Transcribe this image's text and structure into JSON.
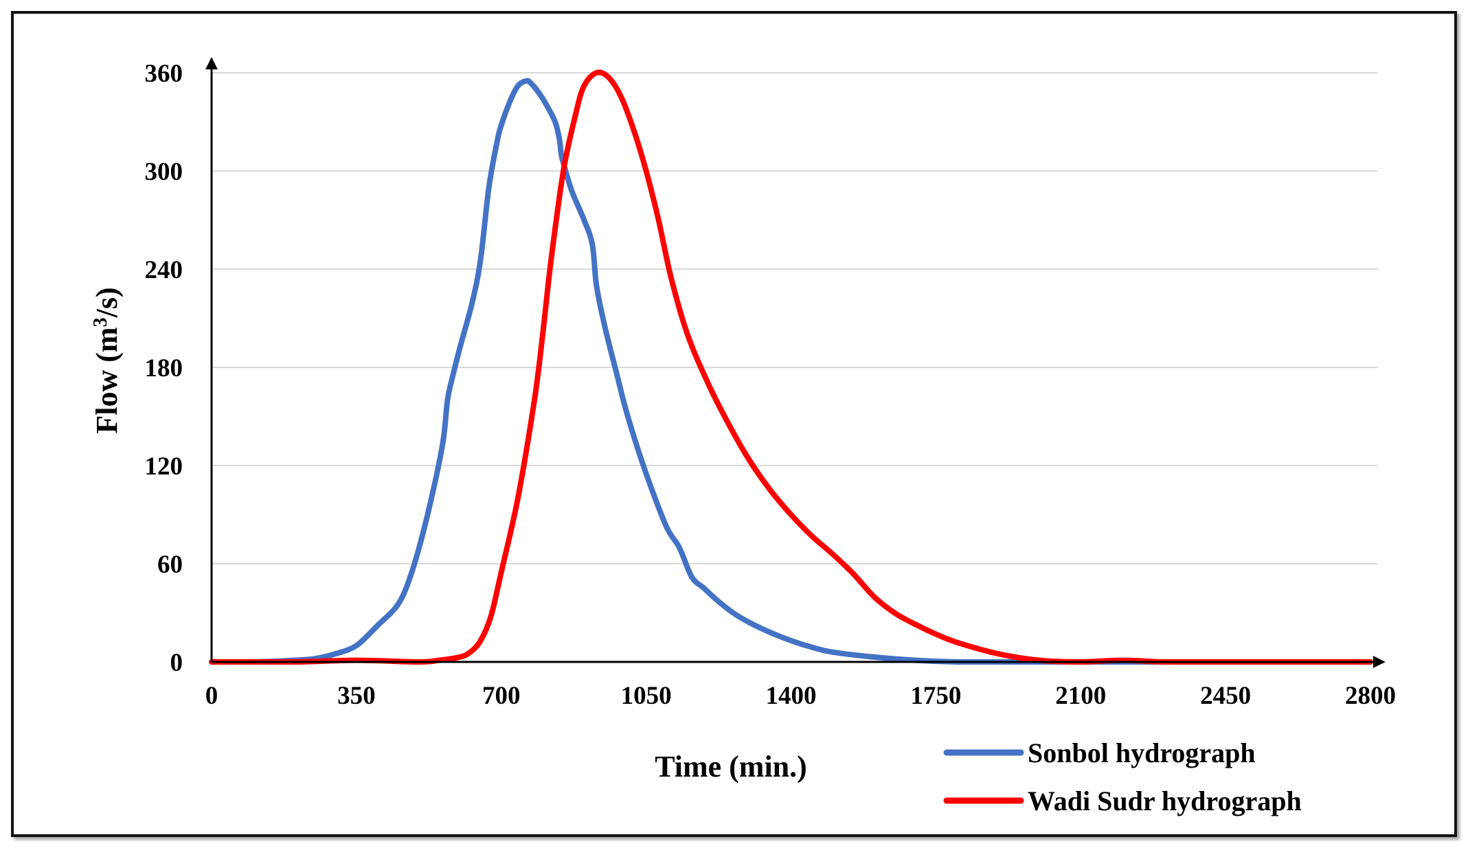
{
  "chart_data": {
    "type": "line",
    "title": "",
    "xlabel": "Time (min.)",
    "ylabel_prefix": "Flow (m",
    "ylabel_sup": "3",
    "ylabel_suffix": "/s)",
    "xlim": [
      0,
      2800
    ],
    "ylim": [
      0,
      360
    ],
    "x_ticks": [
      0,
      350,
      700,
      1050,
      1400,
      1750,
      2100,
      2450,
      2800
    ],
    "y_ticks": [
      0,
      60,
      120,
      180,
      240,
      300,
      360
    ],
    "grid": "horizontal",
    "legend_position": "bottom-right",
    "series": [
      {
        "name": "Sonbol hydrograph",
        "color": "#4472C4",
        "x": [
          0,
          100,
          200,
          250,
          300,
          350,
          400,
          450,
          480,
          510,
          540,
          560,
          570,
          580,
          600,
          630,
          650,
          670,
          690,
          700,
          720,
          740,
          760,
          770,
          790,
          810,
          830,
          840,
          845,
          850,
          870,
          900,
          920,
          930,
          950,
          980,
          1000,
          1030,
          1060,
          1100,
          1130,
          1160,
          1190,
          1220,
          1260,
          1300,
          1350,
          1400,
          1450,
          1500,
          1600,
          1700,
          1800,
          1900,
          2000,
          2100,
          2400,
          2800
        ],
        "y": [
          0,
          0,
          1,
          2,
          5,
          10,
          22,
          35,
          52,
          78,
          110,
          136,
          160,
          172,
          192,
          220,
          246,
          290,
          318,
          328,
          342,
          352,
          355,
          354,
          348,
          340,
          330,
          320,
          310,
          305,
          288,
          270,
          255,
          230,
          205,
          175,
          155,
          130,
          108,
          82,
          70,
          52,
          45,
          38,
          30,
          24,
          18,
          13,
          9,
          6,
          3,
          1,
          0,
          0,
          0,
          0,
          0,
          0
        ]
      },
      {
        "name": "Wadi Sudr hydrograph",
        "color": "#FF0000",
        "x": [
          0,
          200,
          350,
          500,
          550,
          600,
          625,
          650,
          675,
          700,
          740,
          780,
          800,
          820,
          850,
          880,
          900,
          930,
          960,
          990,
          1020,
          1050,
          1080,
          1110,
          1150,
          1200,
          1250,
          1300,
          1350,
          1400,
          1450,
          1500,
          1550,
          1600,
          1650,
          1700,
          1750,
          1800,
          1900,
          2000,
          2100,
          2200,
          2300,
          2400,
          2800
        ],
        "y": [
          0,
          0,
          1,
          0,
          1,
          3,
          6,
          13,
          28,
          55,
          100,
          160,
          200,
          245,
          300,
          335,
          352,
          360,
          357,
          345,
          325,
          300,
          270,
          235,
          200,
          170,
          145,
          123,
          105,
          90,
          77,
          66,
          54,
          40,
          30,
          23,
          17,
          12,
          5,
          1,
          0,
          1,
          0,
          0,
          0
        ]
      }
    ]
  }
}
